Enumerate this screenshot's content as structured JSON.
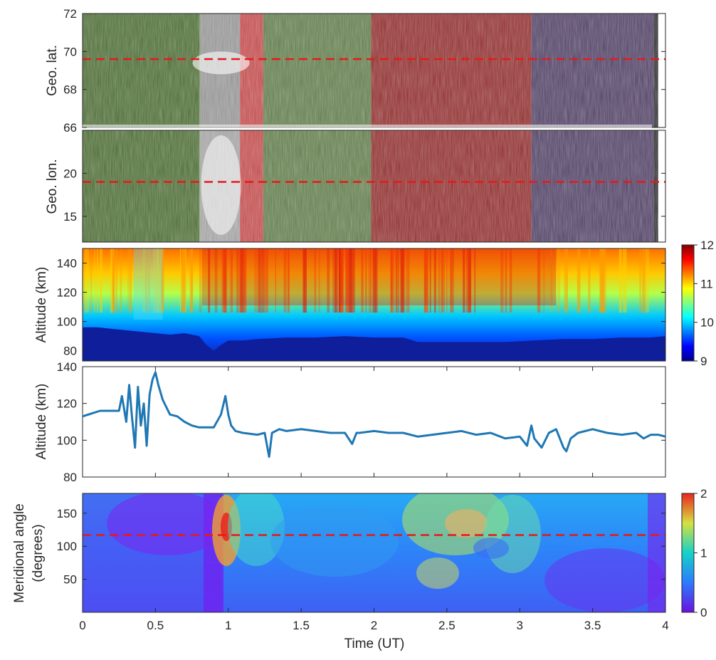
{
  "figure": {
    "x_axis": {
      "label": "Time (UT)",
      "range": [
        0,
        4
      ],
      "ticks": [
        0,
        0.5,
        1,
        1.5,
        2,
        2.5,
        3,
        3.5,
        4
      ],
      "tick_labels": [
        "0",
        "0.5",
        "1",
        "1.5",
        "2",
        "2.5",
        "3",
        "3.5",
        "4"
      ]
    }
  },
  "chart_data": [
    {
      "type": "heatmap",
      "panel": "keogram-latitude",
      "ylabel": "Geo. lat.",
      "ylim": [
        66,
        72
      ],
      "yticks": [
        66,
        68,
        70,
        72
      ],
      "ytick_labels": [
        "66",
        "68",
        "70",
        "72"
      ],
      "reference_line": {
        "y": 69.6,
        "color": "#e41a1c",
        "style": "dashed"
      },
      "color_segments": [
        {
          "start": 0.0,
          "end": 0.81,
          "tint": "#4a6a32"
        },
        {
          "start": 0.81,
          "end": 1.08,
          "tint": "#6e6e6e"
        },
        {
          "start": 1.08,
          "end": 1.24,
          "tint": "#c04848"
        },
        {
          "start": 1.24,
          "end": 1.98,
          "tint": "#5e7a48"
        },
        {
          "start": 1.98,
          "end": 3.08,
          "tint": "#8e2c2c"
        },
        {
          "start": 3.08,
          "end": 3.92,
          "tint": "#4e3e62"
        },
        {
          "start": 3.92,
          "end": 3.95,
          "tint": "#2b2b2b"
        }
      ]
    },
    {
      "type": "heatmap",
      "panel": "keogram-longitude",
      "ylabel": "Geo. lon.",
      "ylim": [
        12,
        25
      ],
      "yticks": [
        15,
        20
      ],
      "ytick_labels": [
        "15",
        "20"
      ],
      "reference_line": {
        "y": 19,
        "color": "#e41a1c",
        "style": "dashed"
      }
    },
    {
      "type": "heatmap",
      "panel": "altitude-profile",
      "ylabel": "Altitude (km)",
      "ylim": [
        73,
        150
      ],
      "yticks": [
        80,
        100,
        120,
        140
      ],
      "ytick_labels": [
        "80",
        "100",
        "120",
        "140"
      ],
      "colorbar": {
        "range": [
          9,
          12
        ],
        "ticks": [
          "9",
          "10",
          "11",
          "12"
        ],
        "colormap": "jet"
      },
      "boundary_altitude": {
        "x": [
          0,
          0.1,
          0.2,
          0.3,
          0.4,
          0.5,
          0.6,
          0.7,
          0.8,
          0.85,
          0.9,
          0.95,
          1.0,
          1.1,
          1.2,
          1.4,
          1.6,
          1.8,
          2.0,
          2.2,
          2.3,
          2.5,
          2.7,
          2.9,
          3.1,
          3.3,
          3.5,
          3.7,
          3.9,
          4.0
        ],
        "y": [
          96,
          96,
          95,
          94,
          93,
          92,
          91,
          92,
          90,
          84,
          80,
          84,
          87,
          87,
          88,
          89,
          89,
          90,
          89,
          89,
          86,
          86,
          86,
          86,
          87,
          88,
          88,
          89,
          89,
          90
        ]
      }
    },
    {
      "type": "line",
      "panel": "peak-altitude",
      "ylabel": "Altitude (km)",
      "ylim": [
        80,
        140
      ],
      "yticks": [
        80,
        100,
        120,
        140
      ],
      "ytick_labels": [
        "80",
        "100",
        "120",
        "140"
      ],
      "series": [
        {
          "color": "#1f77b4",
          "x": [
            0,
            0.12,
            0.25,
            0.27,
            0.3,
            0.32,
            0.34,
            0.36,
            0.38,
            0.4,
            0.42,
            0.44,
            0.46,
            0.48,
            0.5,
            0.52,
            0.55,
            0.6,
            0.65,
            0.7,
            0.75,
            0.8,
            0.85,
            0.9,
            0.95,
            0.98,
            1.0,
            1.02,
            1.05,
            1.1,
            1.2,
            1.25,
            1.28,
            1.3,
            1.35,
            1.4,
            1.5,
            1.6,
            1.7,
            1.8,
            1.85,
            1.88,
            1.9,
            2.0,
            2.1,
            2.2,
            2.3,
            2.4,
            2.5,
            2.6,
            2.7,
            2.8,
            2.9,
            3.0,
            3.05,
            3.08,
            3.1,
            3.15,
            3.2,
            3.25,
            3.3,
            3.32,
            3.35,
            3.4,
            3.5,
            3.6,
            3.7,
            3.8,
            3.85,
            3.9,
            3.95,
            4.0
          ],
          "y": [
            113,
            116,
            116,
            124,
            110,
            130,
            112,
            96,
            129,
            108,
            120,
            97,
            125,
            133,
            137,
            130,
            122,
            114,
            113,
            110,
            108,
            107,
            107,
            107,
            114,
            124,
            114,
            108,
            105,
            104,
            103,
            104,
            91,
            104,
            106,
            105,
            106,
            105,
            104,
            104,
            98,
            104,
            104,
            105,
            104,
            104,
            102,
            103,
            104,
            105,
            103,
            104,
            101,
            102,
            97,
            108,
            101,
            96,
            104,
            106,
            96,
            94,
            101,
            104,
            106,
            104,
            103,
            104,
            101,
            103,
            103,
            102
          ]
        }
      ]
    },
    {
      "type": "heatmap",
      "panel": "meridional-angle",
      "ylabel": "Meridional angle",
      "ylabel_line2": "(degrees)",
      "ylim": [
        0,
        180
      ],
      "yticks": [
        50,
        100,
        150
      ],
      "ytick_labels": [
        "50",
        "100",
        "150"
      ],
      "reference_line": {
        "y": 117,
        "color": "#e41a1c",
        "style": "dashed"
      },
      "colorbar": {
        "range": [
          0,
          2
        ],
        "ticks": [
          "0",
          "1",
          "2"
        ],
        "colormap": "jet"
      }
    }
  ]
}
